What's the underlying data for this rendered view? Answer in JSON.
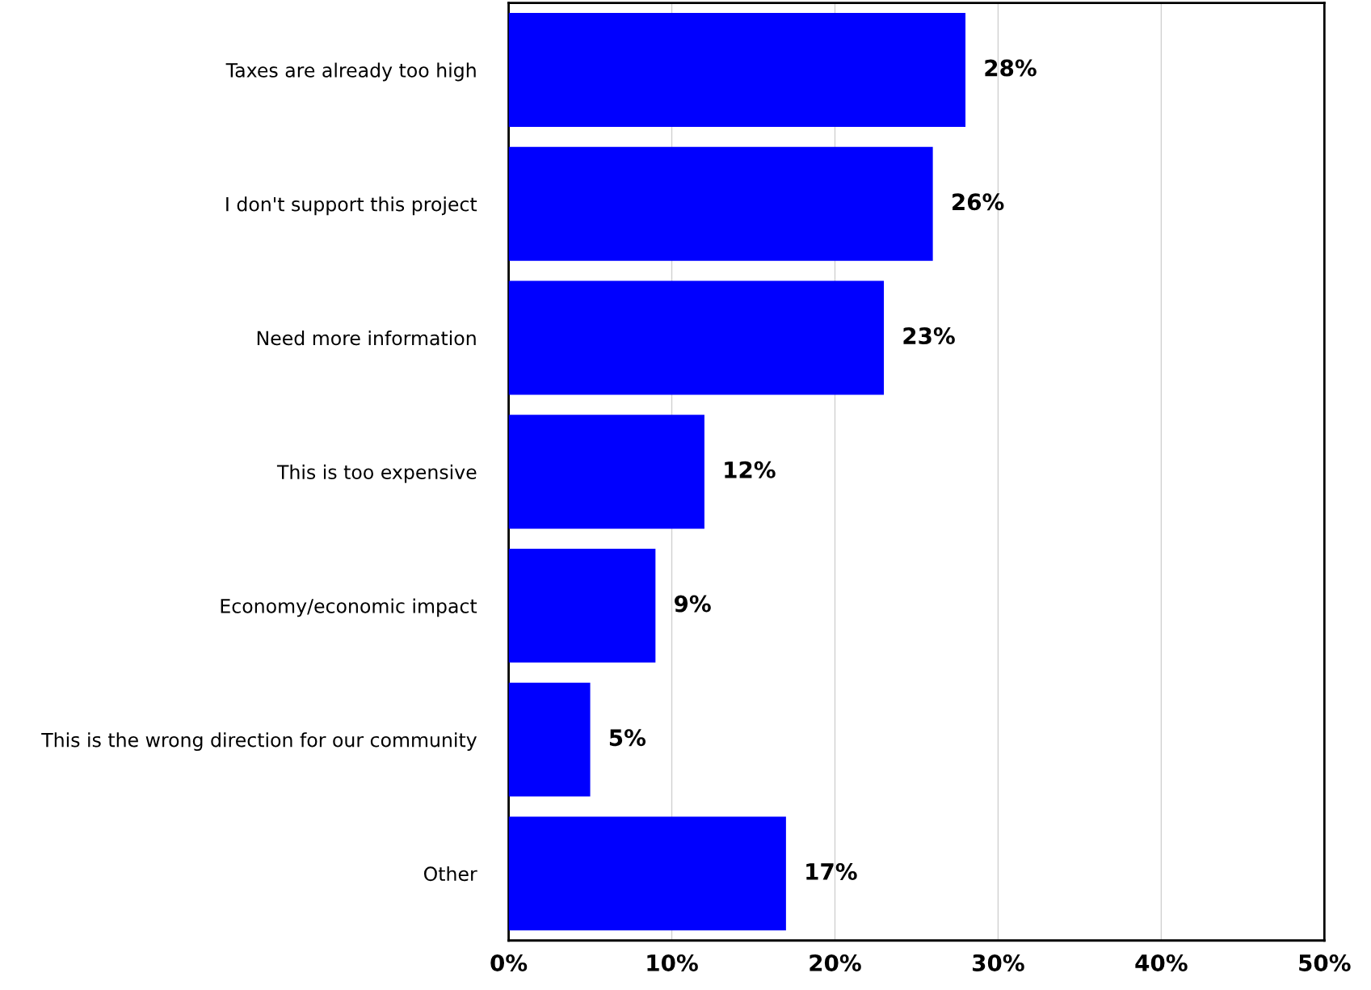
{
  "chart_data": {
    "type": "bar",
    "orientation": "horizontal",
    "categories": [
      "Taxes are already too high",
      "I don't support this project",
      "Need more information",
      "This is too expensive",
      "Economy/economic impact",
      "This is the wrong direction for our community",
      "Other"
    ],
    "values": [
      28,
      26,
      23,
      12,
      9,
      5,
      17
    ],
    "color": "#0000ff",
    "value_labels": [
      "28%",
      "26%",
      "23%",
      "12%",
      "9%",
      "5%",
      "17%"
    ],
    "xlim": [
      0,
      50
    ],
    "xticks": [
      {
        "value": 0,
        "label": "0%"
      },
      {
        "value": 10,
        "label": "10%"
      },
      {
        "value": 20,
        "label": "20%"
      },
      {
        "value": 30,
        "label": "30%"
      },
      {
        "value": 40,
        "label": "40%"
      },
      {
        "value": 50,
        "label": "50%"
      }
    ],
    "grid": "x",
    "legend": false
  }
}
